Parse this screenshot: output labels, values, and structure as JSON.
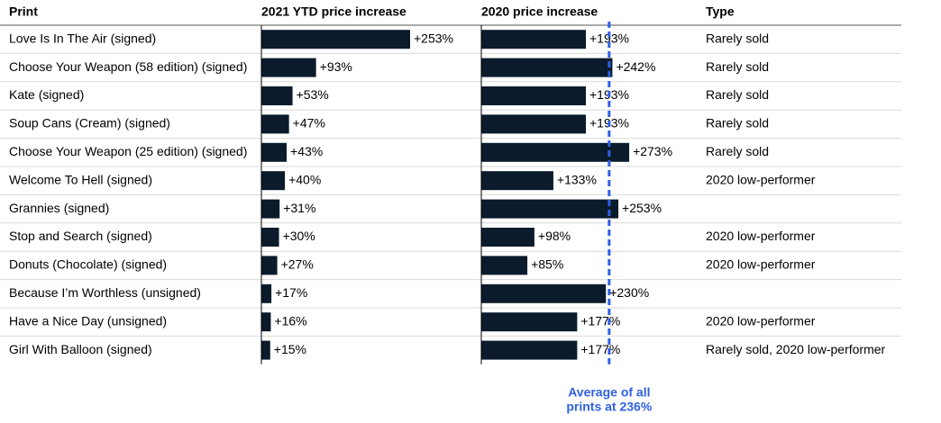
{
  "table": {
    "headers": [
      "Print",
      "2021 YTD price increase",
      "2020 price increase",
      "Type"
    ],
    "rows": [
      {
        "print": "Love Is In The Air (signed)",
        "ytd": 253,
        "ytd_label": "+253%",
        "y2020": 193,
        "y2020_label": "+193%",
        "type": "Rarely sold"
      },
      {
        "print": "Choose Your Weapon (58 edition) (signed)",
        "ytd": 93,
        "ytd_label": "+93%",
        "y2020": 242,
        "y2020_label": "+242%",
        "type": "Rarely sold"
      },
      {
        "print": "Kate (signed)",
        "ytd": 53,
        "ytd_label": "+53%",
        "y2020": 193,
        "y2020_label": "+193%",
        "type": "Rarely sold"
      },
      {
        "print": "Soup Cans (Cream) (signed)",
        "ytd": 47,
        "ytd_label": "+47%",
        "y2020": 193,
        "y2020_label": "+193%",
        "type": "Rarely sold"
      },
      {
        "print": "Choose Your Weapon (25 edition) (signed)",
        "ytd": 43,
        "ytd_label": "+43%",
        "y2020": 273,
        "y2020_label": "+273%",
        "type": "Rarely sold"
      },
      {
        "print": "Welcome To Hell (signed)",
        "ytd": 40,
        "ytd_label": "+40%",
        "y2020": 133,
        "y2020_label": "+133%",
        "type": "2020 low-performer"
      },
      {
        "print": "Grannies (signed)",
        "ytd": 31,
        "ytd_label": "+31%",
        "y2020": 253,
        "y2020_label": "+253%",
        "type": null
      },
      {
        "print": "Stop and Search (signed)",
        "ytd": 30,
        "ytd_label": "+30%",
        "y2020": 98,
        "y2020_label": "+98%",
        "type": "2020 low-performer"
      },
      {
        "print": "Donuts (Chocolate) (signed)",
        "ytd": 27,
        "ytd_label": "+27%",
        "y2020": 85,
        "y2020_label": "+85%",
        "type": "2020 low-performer"
      },
      {
        "print": "Because I’m Worthless (unsigned)",
        "ytd": 17,
        "ytd_label": "+17%",
        "y2020": 230,
        "y2020_label": "+230%",
        "type": null
      },
      {
        "print": "Have a Nice Day (unsigned)",
        "ytd": 16,
        "ytd_label": "+16%",
        "y2020": 177,
        "y2020_label": "+177%",
        "type": "2020 low-performer"
      },
      {
        "print": "Girl With Balloon (signed)",
        "ytd": 15,
        "ytd_label": "+15%",
        "y2020": 177,
        "y2020_label": "+177%",
        "type": "Rarely sold, 2020 low-performer"
      }
    ]
  },
  "average": {
    "value": 236,
    "lines": [
      "Average of all",
      "prints at 236%"
    ]
  },
  "bar_color": "#0b1b2b",
  "average_color": "#2f5fe3"
}
